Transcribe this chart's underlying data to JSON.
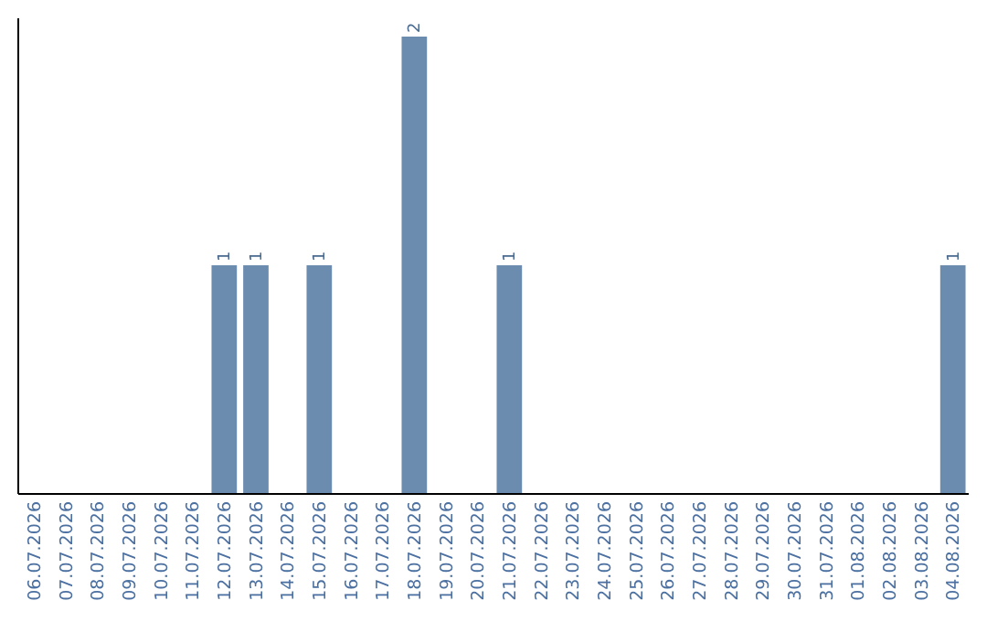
{
  "chart_data": {
    "type": "bar",
    "categories": [
      "06.07.2026",
      "07.07.2026",
      "08.07.2026",
      "09.07.2026",
      "10.07.2026",
      "11.07.2026",
      "12.07.2026",
      "13.07.2026",
      "14.07.2026",
      "15.07.2026",
      "16.07.2026",
      "17.07.2026",
      "18.07.2026",
      "19.07.2026",
      "20.07.2026",
      "21.07.2026",
      "22.07.2026",
      "23.07.2026",
      "24.07.2026",
      "25.07.2026",
      "26.07.2026",
      "27.07.2026",
      "28.07.2026",
      "29.07.2026",
      "30.07.2026",
      "31.07.2026",
      "01.08.2026",
      "02.08.2026",
      "03.08.2026",
      "04.08.2026"
    ],
    "values": [
      0,
      0,
      0,
      0,
      0,
      0,
      1,
      1,
      0,
      1,
      0,
      0,
      2,
      0,
      0,
      1,
      0,
      0,
      0,
      0,
      0,
      0,
      0,
      0,
      0,
      0,
      0,
      0,
      0,
      1
    ],
    "value_labels": [
      null,
      null,
      null,
      null,
      null,
      null,
      "1",
      "1",
      null,
      "1",
      null,
      null,
      "2",
      null,
      null,
      "1",
      null,
      null,
      null,
      null,
      null,
      null,
      null,
      null,
      null,
      null,
      null,
      null,
      null,
      "1"
    ],
    "color": "#6b8cae",
    "ylim": [
      0,
      2
    ],
    "grid": false
  }
}
